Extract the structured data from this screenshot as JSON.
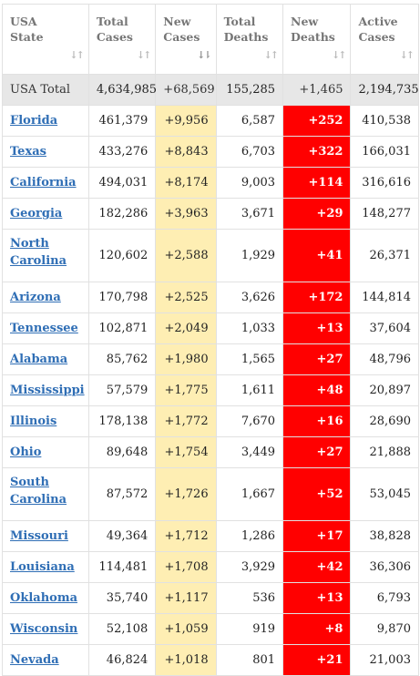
{
  "headers": [
    {
      "line1": "USA",
      "line2": "State"
    },
    {
      "line1": "Total",
      "line2": "Cases"
    },
    {
      "line1": "New",
      "line2": "Cases"
    },
    {
      "line1": "Total",
      "line2": "Deaths"
    },
    {
      "line1": "New",
      "line2": "Deaths"
    },
    {
      "line1": "Active",
      "line2": "Cases"
    }
  ],
  "sort_glyph": "↓↑",
  "sort_glyph_active": "↓⇂",
  "colors": {
    "new_cases_bg": "#feeeb3",
    "new_deaths_bg": "#ff0000",
    "link": "#2f6eb5",
    "total_row_bg": "#e7e7e7"
  },
  "total": {
    "state": "USA Total",
    "total_cases": "4,634,985",
    "new_cases": "+68,569",
    "total_deaths": "155,285",
    "new_deaths": "+1,465",
    "active_cases": "2,194,735"
  },
  "rows": [
    {
      "state": "Florida",
      "total_cases": "461,379",
      "new_cases": "+9,956",
      "total_deaths": "6,587",
      "new_deaths": "+252",
      "active_cases": "410,538"
    },
    {
      "state": "Texas",
      "total_cases": "433,276",
      "new_cases": "+8,843",
      "total_deaths": "6,703",
      "new_deaths": "+322",
      "active_cases": "166,031"
    },
    {
      "state": "California",
      "total_cases": "494,031",
      "new_cases": "+8,174",
      "total_deaths": "9,003",
      "new_deaths": "+114",
      "active_cases": "316,616"
    },
    {
      "state": "Georgia",
      "total_cases": "182,286",
      "new_cases": "+3,963",
      "total_deaths": "3,671",
      "new_deaths": "+29",
      "active_cases": "148,277"
    },
    {
      "state": "North Carolina",
      "total_cases": "120,602",
      "new_cases": "+2,588",
      "total_deaths": "1,929",
      "new_deaths": "+41",
      "active_cases": "26,371"
    },
    {
      "state": "Arizona",
      "total_cases": "170,798",
      "new_cases": "+2,525",
      "total_deaths": "3,626",
      "new_deaths": "+172",
      "active_cases": "144,814"
    },
    {
      "state": "Tennessee",
      "total_cases": "102,871",
      "new_cases": "+2,049",
      "total_deaths": "1,033",
      "new_deaths": "+13",
      "active_cases": "37,604"
    },
    {
      "state": "Alabama",
      "total_cases": "85,762",
      "new_cases": "+1,980",
      "total_deaths": "1,565",
      "new_deaths": "+27",
      "active_cases": "48,796"
    },
    {
      "state": "Mississippi",
      "total_cases": "57,579",
      "new_cases": "+1,775",
      "total_deaths": "1,611",
      "new_deaths": "+48",
      "active_cases": "20,897"
    },
    {
      "state": "Illinois",
      "total_cases": "178,138",
      "new_cases": "+1,772",
      "total_deaths": "7,670",
      "new_deaths": "+16",
      "active_cases": "28,690"
    },
    {
      "state": "Ohio",
      "total_cases": "89,648",
      "new_cases": "+1,754",
      "total_deaths": "3,449",
      "new_deaths": "+27",
      "active_cases": "21,888"
    },
    {
      "state": "South Carolina",
      "total_cases": "87,572",
      "new_cases": "+1,726",
      "total_deaths": "1,667",
      "new_deaths": "+52",
      "active_cases": "53,045"
    },
    {
      "state": "Missouri",
      "total_cases": "49,364",
      "new_cases": "+1,712",
      "total_deaths": "1,286",
      "new_deaths": "+17",
      "active_cases": "38,828"
    },
    {
      "state": "Louisiana",
      "total_cases": "114,481",
      "new_cases": "+1,708",
      "total_deaths": "3,929",
      "new_deaths": "+42",
      "active_cases": "36,306"
    },
    {
      "state": "Oklahoma",
      "total_cases": "35,740",
      "new_cases": "+1,117",
      "total_deaths": "536",
      "new_deaths": "+13",
      "active_cases": "6,793"
    },
    {
      "state": "Wisconsin",
      "total_cases": "52,108",
      "new_cases": "+1,059",
      "total_deaths": "919",
      "new_deaths": "+8",
      "active_cases": "9,870"
    },
    {
      "state": "Nevada",
      "total_cases": "46,824",
      "new_cases": "+1,018",
      "total_deaths": "801",
      "new_deaths": "+21",
      "active_cases": "21,003"
    }
  ]
}
